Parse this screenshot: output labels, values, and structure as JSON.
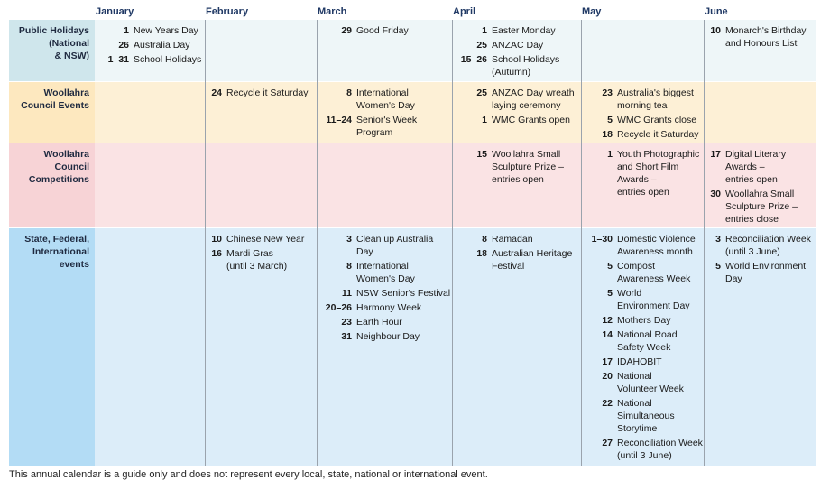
{
  "months": [
    "January",
    "February",
    "March",
    "April",
    "May",
    "June"
  ],
  "rows": [
    {
      "label": "Public Holidays (National & NSW)",
      "label_lines": [
        "Public Holidays",
        "(National",
        "& NSW)"
      ],
      "color": "#cfe6ec",
      "cellcolor": "#eef6f8",
      "cells": [
        [
          {
            "d": "1",
            "t": [
              "New Years Day"
            ]
          },
          {
            "d": "26",
            "t": [
              "Australia Day"
            ]
          },
          {
            "d": "1–31",
            "t": [
              "School Holidays"
            ]
          }
        ],
        [],
        [
          {
            "d": "29",
            "t": [
              "Good Friday"
            ]
          }
        ],
        [
          {
            "d": "1",
            "t": [
              "Easter Monday"
            ]
          },
          {
            "d": "25",
            "t": [
              "ANZAC Day"
            ]
          },
          {
            "d": "15–26",
            "t": [
              "School Holidays",
              "(Autumn)"
            ]
          }
        ],
        [],
        [
          {
            "d": "10",
            "t": [
              "Monarch's Birthday",
              "and Honours List"
            ]
          }
        ]
      ]
    },
    {
      "label": "Woollahra Council Events",
      "label_lines": [
        "Woollahra",
        "Council Events"
      ],
      "color": "#fde8bf",
      "cellcolor": "#fdf0d6",
      "cells": [
        [],
        [
          {
            "d": "24",
            "t": [
              "Recycle it Saturday"
            ]
          }
        ],
        [
          {
            "d": "8",
            "t": [
              "International",
              "Women's Day"
            ]
          },
          {
            "d": "11–24",
            "t": [
              "Senior's Week",
              "Program"
            ]
          }
        ],
        [
          {
            "d": "25",
            "t": [
              "ANZAC Day wreath",
              "laying ceremony"
            ]
          },
          {
            "d": "1",
            "t": [
              "WMC Grants open"
            ]
          }
        ],
        [
          {
            "d": "23",
            "t": [
              "Australia's biggest",
              "morning tea"
            ]
          },
          {
            "d": "5",
            "t": [
              "WMC Grants close"
            ]
          },
          {
            "d": "18",
            "t": [
              "Recycle it Saturday"
            ]
          }
        ],
        []
      ]
    },
    {
      "label": "Woollahra Council Competitions",
      "label_lines": [
        "Woollahra",
        "Council",
        "Competitions"
      ],
      "color": "#f7d3d6",
      "cellcolor": "#fae3e4",
      "cells": [
        [],
        [],
        [],
        [
          {
            "d": "15",
            "t": [
              "Woollahra Small",
              "Sculpture Prize –",
              "entries open"
            ]
          }
        ],
        [
          {
            "d": "1",
            "t": [
              "Youth Photographic",
              "and Short Film",
              "Awards –",
              "entries open"
            ]
          }
        ],
        [
          {
            "d": "17",
            "t": [
              "Digital Literary",
              "Awards –",
              "entries open"
            ]
          },
          {
            "d": "30",
            "t": [
              "Woollahra Small",
              "Sculpture Prize –",
              "entries close"
            ]
          }
        ]
      ]
    },
    {
      "label": "State, Federal, International events",
      "label_lines": [
        "State, Federal,",
        "International",
        "events"
      ],
      "color": "#b3dcf5",
      "cellcolor": "#dcedf9",
      "cells": [
        [],
        [
          {
            "d": "10",
            "t": [
              "Chinese New Year"
            ]
          },
          {
            "d": "16",
            "t": [
              "Mardi Gras",
              "(until 3 March)"
            ]
          }
        ],
        [
          {
            "d": "3",
            "t": [
              "Clean up Australia Day"
            ]
          },
          {
            "d": "8",
            "t": [
              "International",
              "Women's Day"
            ]
          },
          {
            "d": "11",
            "t": [
              "NSW Senior's Festival"
            ]
          },
          {
            "d": "20–26",
            "t": [
              "Harmony Week"
            ]
          },
          {
            "d": "23",
            "t": [
              "Earth Hour"
            ]
          },
          {
            "d": "31",
            "t": [
              "Neighbour Day"
            ]
          }
        ],
        [
          {
            "d": "8",
            "t": [
              "Ramadan"
            ]
          },
          {
            "d": "18",
            "t": [
              "Australian Heritage",
              "Festival"
            ]
          }
        ],
        [
          {
            "d": "1–30",
            "t": [
              "Domestic Violence",
              "Awareness month"
            ]
          },
          {
            "d": "5",
            "t": [
              "Compost",
              "Awareness Week"
            ]
          },
          {
            "d": "5",
            "t": [
              "World",
              "Environment Day"
            ]
          },
          {
            "d": "12",
            "t": [
              "Mothers Day"
            ]
          },
          {
            "d": "14",
            "t": [
              "National Road",
              "Safety Week"
            ]
          },
          {
            "d": "17",
            "t": [
              "IDAHOBIT"
            ]
          },
          {
            "d": "20",
            "t": [
              "National",
              "Volunteer Week"
            ]
          },
          {
            "d": "22",
            "t": [
              "National",
              "Simultaneous",
              "Storytime"
            ]
          },
          {
            "d": "27",
            "t": [
              "Reconciliation Week",
              "(until 3 June)"
            ]
          }
        ],
        [
          {
            "d": "3",
            "t": [
              "Reconciliation Week",
              "(until 3 June)"
            ]
          },
          {
            "d": "5",
            "t": [
              "World Environment",
              "Day"
            ]
          }
        ]
      ]
    }
  ],
  "footer": "This annual calendar is a guide only and does not represent every local, state, national or international event."
}
